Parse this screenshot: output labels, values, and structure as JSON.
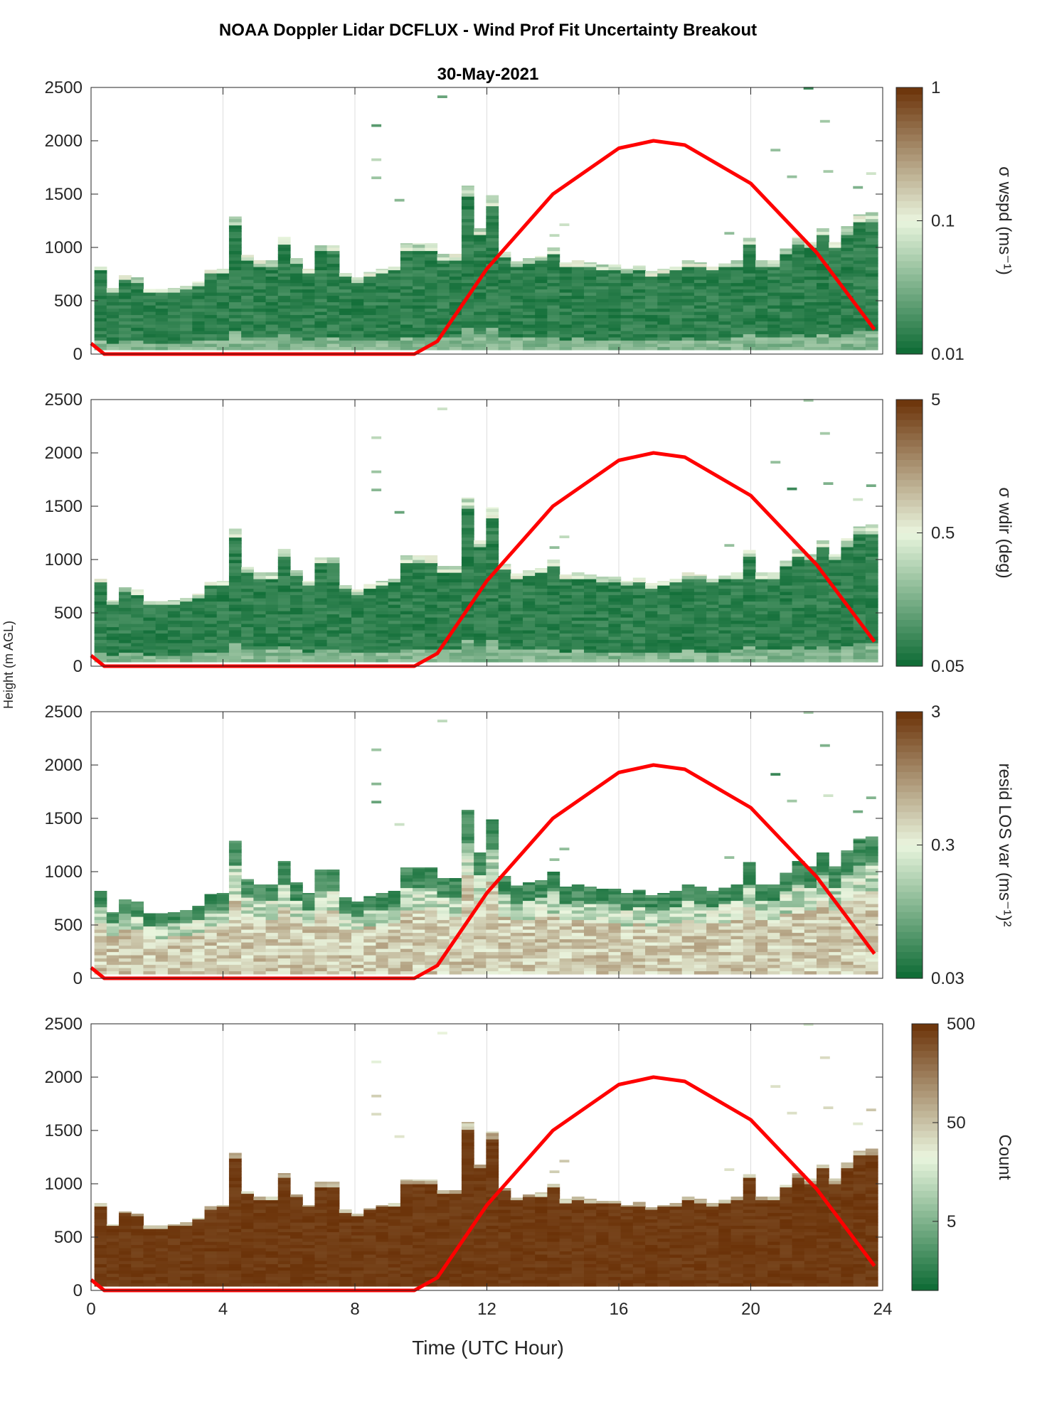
{
  "title": "NOAA Doppler Lidar DCFLUX - Wind Prof Fit Uncertainty Breakout",
  "subtitle": "30-May-2021",
  "shared_ylabel": "Height (m AGL)",
  "xlabel": "Time (UTC Hour)",
  "colors": {
    "low": "#0b6a33",
    "mid": "#eaf5de",
    "high": "#6b3208",
    "sun_line": "#ff0000",
    "grid": "#dddddd"
  },
  "chart_data": [
    {
      "type": "heatmap",
      "name": "sigma_wspd",
      "ylabel": "Height (m AGL)",
      "xlim": [
        0,
        24
      ],
      "ylim": [
        0,
        2500
      ],
      "x_ticks": [
        0,
        4,
        8,
        12,
        16,
        20,
        24
      ],
      "y_ticks": [
        0,
        500,
        1000,
        1500,
        2000,
        2500
      ],
      "colorbar": {
        "label": "σ wspd (ms⁻¹)",
        "scale": "log",
        "range": [
          0.01,
          1
        ],
        "tick_labels": [
          "0.01",
          "0.1",
          "1"
        ]
      },
      "field_style": "upper_dark",
      "data_top_m": [
        820,
        620,
        740,
        720,
        610,
        610,
        620,
        640,
        680,
        790,
        800,
        1290,
        930,
        880,
        880,
        1100,
        900,
        800,
        1020,
        1020,
        760,
        720,
        770,
        800,
        820,
        1040,
        1040,
        1040,
        940,
        940,
        1580,
        1180,
        1490,
        960,
        870,
        900,
        920,
        1000,
        860,
        880,
        860,
        840,
        840,
        800,
        830,
        780,
        800,
        820,
        880,
        860,
        820,
        850,
        880,
        1090,
        880,
        880,
        990,
        1100,
        1050,
        1180,
        1050,
        1200,
        1310,
        1330
      ],
      "sun_line": {
        "x": [
          0,
          0.4,
          9.8,
          10.5,
          12,
          14,
          16,
          17.05,
          18,
          20,
          22,
          23.75
        ],
        "y": [
          100,
          0,
          0,
          120,
          800,
          1500,
          1930,
          2000,
          1960,
          1600,
          950,
          230
        ]
      }
    },
    {
      "type": "heatmap",
      "name": "sigma_wdir",
      "ylabel": "Height (m AGL)",
      "xlim": [
        0,
        24
      ],
      "ylim": [
        0,
        2500
      ],
      "x_ticks": [
        0,
        4,
        8,
        12,
        16,
        20,
        24
      ],
      "y_ticks": [
        0,
        500,
        1000,
        1500,
        2000,
        2500
      ],
      "colorbar": {
        "label": "σ wdir (deg)",
        "scale": "log",
        "range": [
          0.05,
          5
        ],
        "tick_labels": [
          "0.05",
          "0.5",
          "5"
        ]
      },
      "field_style": "upper_dark",
      "data_top_m": [
        820,
        620,
        740,
        720,
        610,
        610,
        620,
        640,
        680,
        790,
        800,
        1290,
        930,
        880,
        880,
        1100,
        900,
        800,
        1020,
        1020,
        760,
        720,
        770,
        800,
        820,
        1040,
        1040,
        1040,
        940,
        940,
        1580,
        1180,
        1490,
        960,
        870,
        900,
        920,
        1000,
        860,
        880,
        860,
        840,
        840,
        800,
        830,
        780,
        800,
        820,
        880,
        860,
        820,
        850,
        880,
        1090,
        880,
        880,
        990,
        1100,
        1050,
        1180,
        1050,
        1200,
        1310,
        1330
      ],
      "sun_line": {
        "x": [
          0,
          0.4,
          9.8,
          10.5,
          12,
          14,
          16,
          17.05,
          18,
          20,
          22,
          23.75
        ],
        "y": [
          100,
          0,
          0,
          120,
          800,
          1500,
          1930,
          2000,
          1960,
          1600,
          950,
          230
        ]
      }
    },
    {
      "type": "heatmap",
      "name": "resid_los_var",
      "ylabel": "Height (m AGL)",
      "xlim": [
        0,
        24
      ],
      "ylim": [
        0,
        2500
      ],
      "x_ticks": [
        0,
        4,
        8,
        12,
        16,
        20,
        24
      ],
      "y_ticks": [
        0,
        500,
        1000,
        1500,
        2000,
        2500
      ],
      "colorbar": {
        "label": "resid LOS var (ms⁻¹)²",
        "scale": "log",
        "range": [
          0.03,
          3
        ],
        "tick_labels": [
          "0.03",
          "0.3",
          "3"
        ]
      },
      "field_style": "lower_light",
      "data_top_m": [
        820,
        620,
        740,
        720,
        610,
        610,
        620,
        640,
        680,
        790,
        800,
        1290,
        930,
        880,
        880,
        1100,
        900,
        800,
        1020,
        1020,
        760,
        720,
        770,
        800,
        820,
        1040,
        1040,
        1040,
        940,
        940,
        1580,
        1180,
        1490,
        960,
        870,
        900,
        920,
        1000,
        860,
        880,
        860,
        840,
        840,
        800,
        830,
        780,
        800,
        820,
        880,
        860,
        820,
        850,
        880,
        1090,
        880,
        880,
        990,
        1100,
        1050,
        1180,
        1050,
        1200,
        1310,
        1330
      ],
      "sun_line": {
        "x": [
          0,
          0.4,
          9.8,
          10.5,
          12,
          14,
          16,
          17.05,
          18,
          20,
          22,
          23.75
        ],
        "y": [
          100,
          0,
          0,
          120,
          800,
          1500,
          1930,
          2000,
          1960,
          1600,
          950,
          230
        ]
      }
    },
    {
      "type": "heatmap",
      "name": "count",
      "ylabel": "Height (m AGL)",
      "xlabel": "Time (UTC Hour)",
      "xlim": [
        0,
        24
      ],
      "ylim": [
        0,
        2500
      ],
      "x_ticks": [
        0,
        4,
        8,
        12,
        16,
        20,
        24
      ],
      "y_ticks": [
        0,
        500,
        1000,
        1500,
        2000,
        2500
      ],
      "colorbar": {
        "label": "Count",
        "scale": "log",
        "range": [
          1,
          500
        ],
        "tick_values": [
          5,
          50,
          500
        ],
        "tick_labels": [
          "5",
          "50",
          "500"
        ]
      },
      "field_style": "count",
      "data_top_m": [
        820,
        620,
        740,
        720,
        610,
        610,
        620,
        640,
        680,
        790,
        800,
        1290,
        930,
        880,
        880,
        1100,
        900,
        800,
        1020,
        1020,
        760,
        720,
        770,
        800,
        820,
        1040,
        1040,
        1040,
        940,
        940,
        1580,
        1180,
        1490,
        960,
        870,
        900,
        920,
        1000,
        860,
        880,
        860,
        840,
        840,
        800,
        830,
        780,
        800,
        820,
        880,
        860,
        820,
        850,
        880,
        1090,
        880,
        880,
        990,
        1100,
        1050,
        1180,
        1050,
        1200,
        1310,
        1330
      ],
      "sun_line": {
        "x": [
          0,
          0.4,
          9.8,
          10.5,
          12,
          14,
          16,
          17.05,
          18,
          20,
          22,
          23.75
        ],
        "y": [
          100,
          0,
          0,
          120,
          800,
          1500,
          1930,
          2000,
          1960,
          1600,
          950,
          230
        ]
      }
    }
  ]
}
